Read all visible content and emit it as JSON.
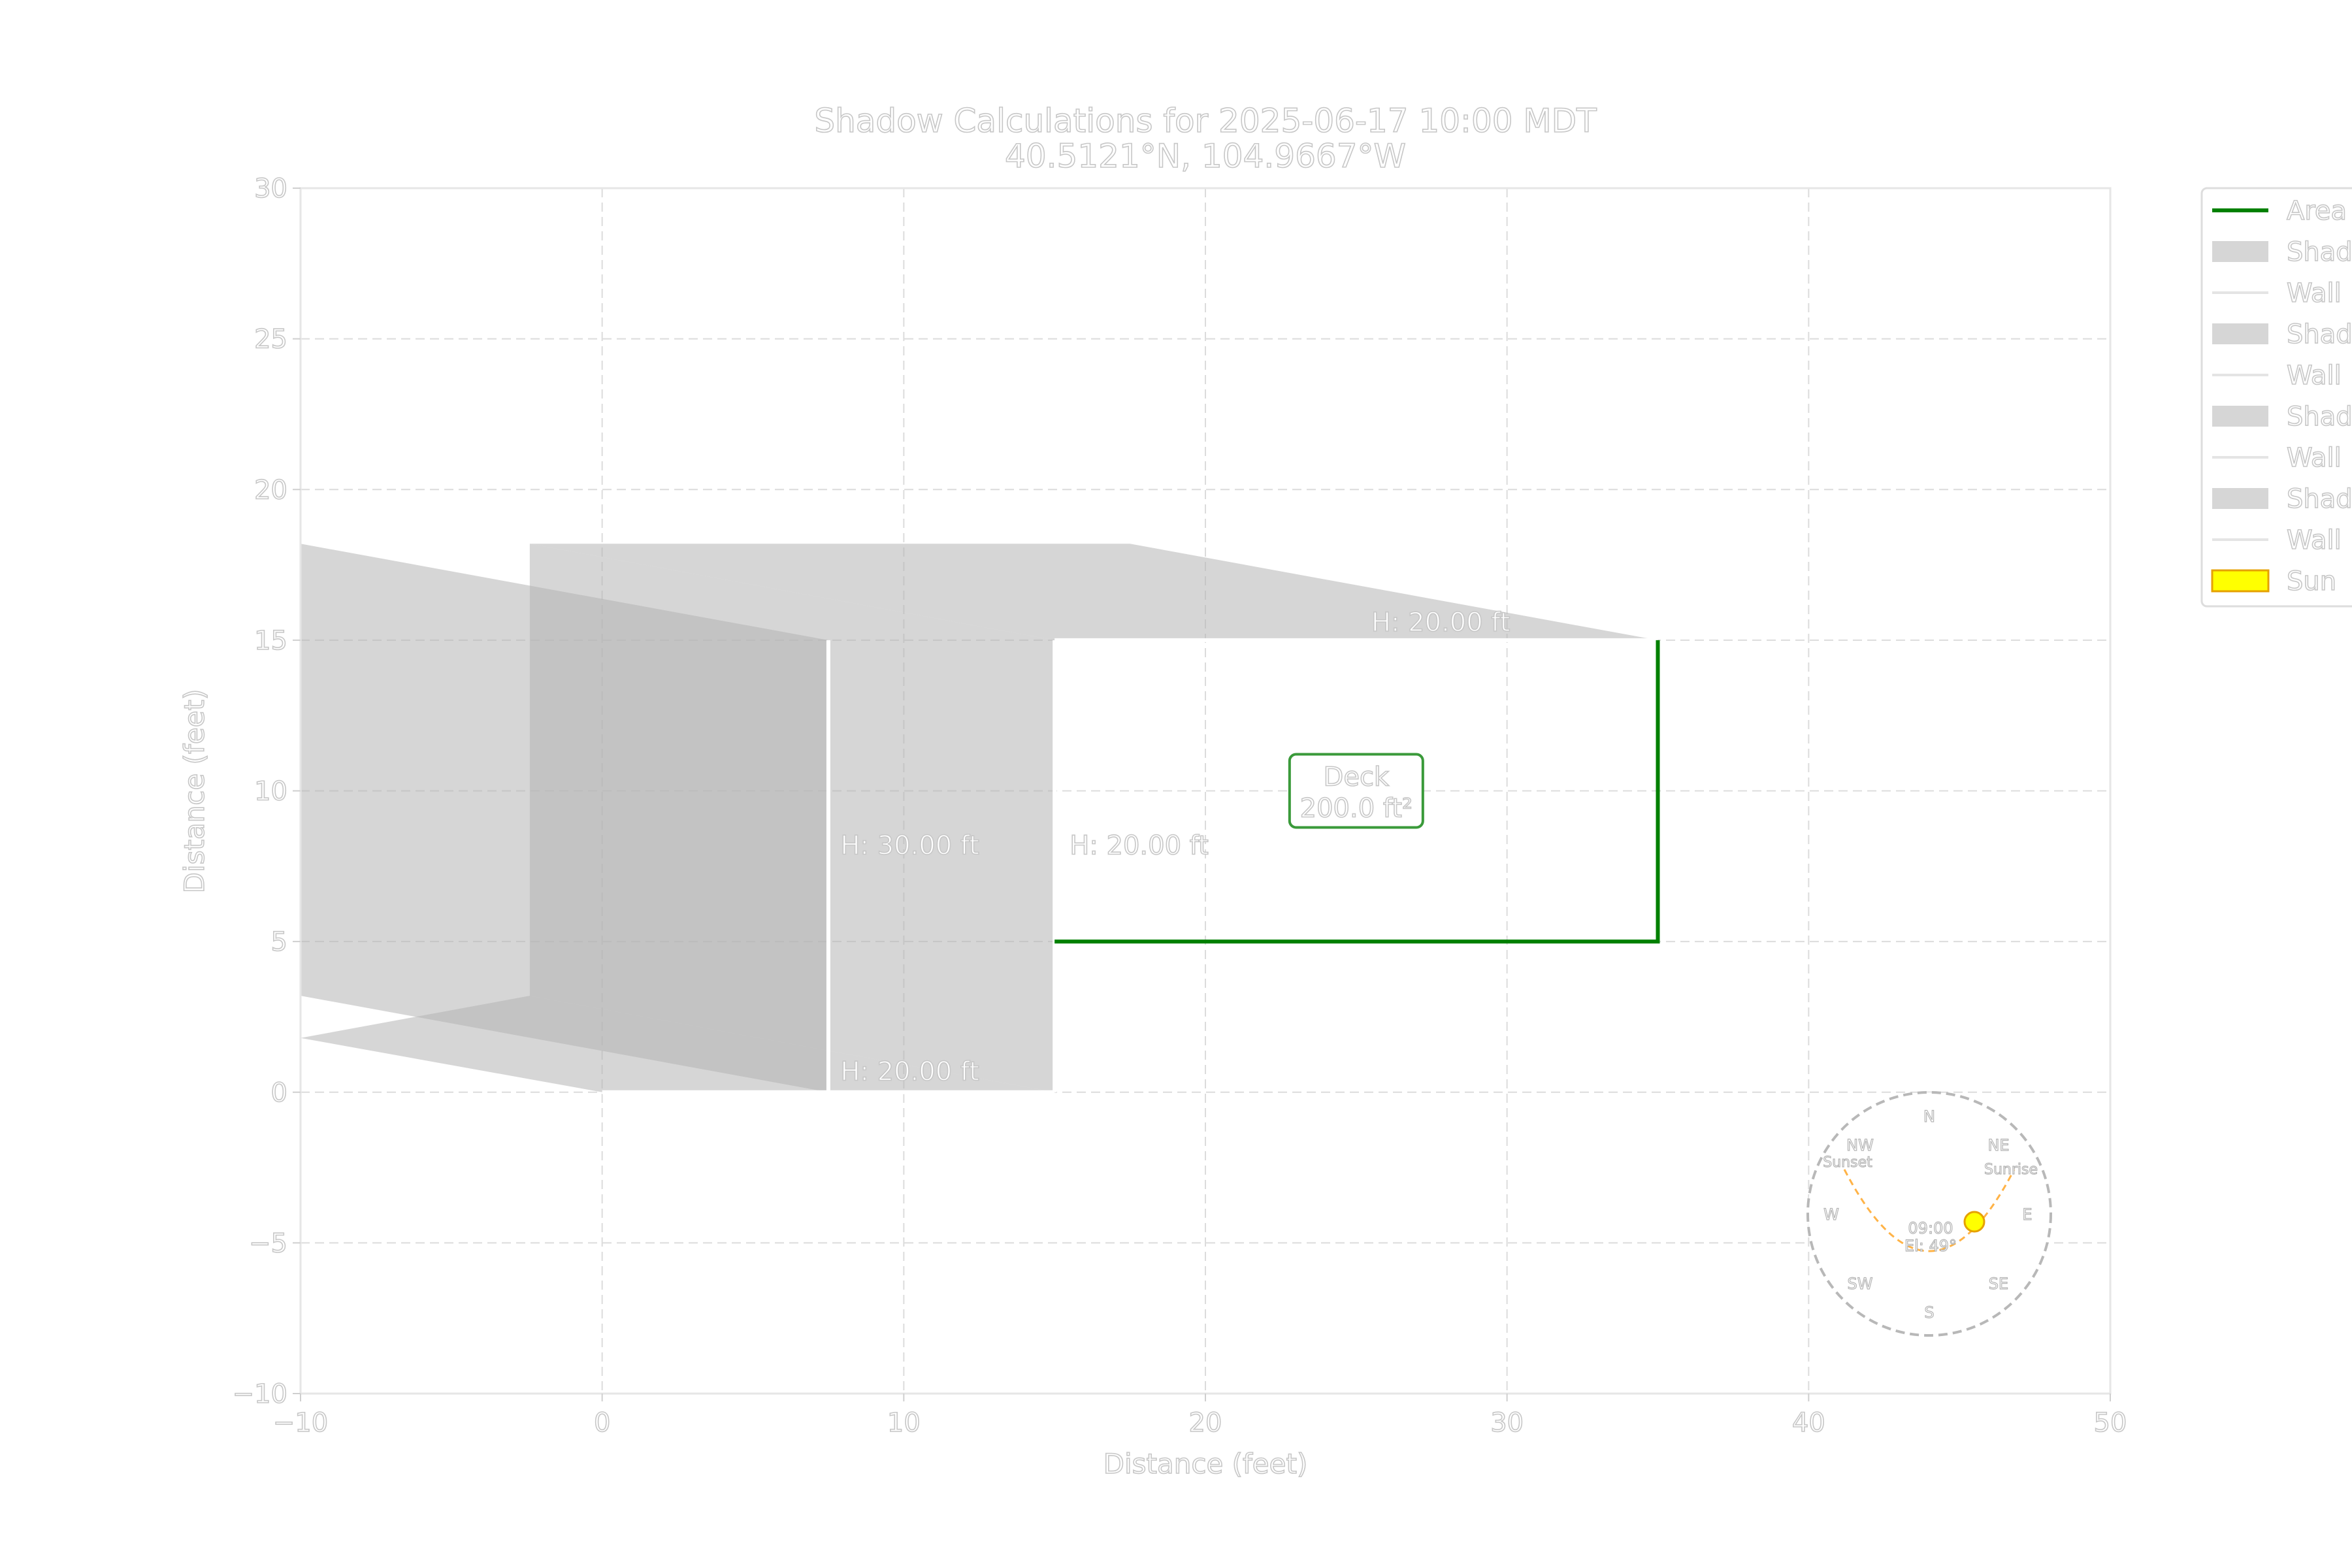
{
  "chart_data": {
    "type": "area",
    "title": "Shadow Calculations for 2025-06-17 10:00 MDT",
    "subtitle": "40.5121°N, 104.9667°W",
    "xlabel": "Distance (feet)",
    "ylabel": "Distance (feet)",
    "xlim": [
      -10,
      50
    ],
    "ylim": [
      -10,
      30
    ],
    "xticks": [
      -10,
      0,
      10,
      20,
      30,
      40,
      50
    ],
    "yticks": [
      -10,
      -5,
      0,
      5,
      10,
      15,
      20,
      25,
      30
    ],
    "tick_labels_x": [
      "−10",
      "0",
      "10",
      "20",
      "30",
      "40",
      "50"
    ],
    "tick_labels_y": [
      "−10",
      "−5",
      "0",
      "5",
      "10",
      "15",
      "20",
      "25",
      "30"
    ],
    "grid": true,
    "legend_position": "upper-right-outside",
    "legend": [
      "Area",
      "Shad",
      "Wall",
      "Shad",
      "Wall",
      "Shad",
      "Wall",
      "Shad",
      "Wall",
      "Sun"
    ],
    "area": {
      "name": "Deck",
      "area_label": "200.0 ft²",
      "polygon": [
        [
          15,
          5
        ],
        [
          35,
          5
        ],
        [
          35,
          15
        ],
        [
          15,
          15
        ]
      ],
      "color": "#008000"
    },
    "walls": [
      {
        "label": "H: 20.00 ft",
        "from": [
          15,
          15
        ],
        "to": [
          35,
          15
        ]
      },
      {
        "label": "H: 20.00 ft",
        "from": [
          15,
          0
        ],
        "to": [
          15,
          15
        ]
      },
      {
        "label": "H: 30.00 ft",
        "from": [
          7.5,
          0
        ],
        "to": [
          7.5,
          15
        ]
      },
      {
        "label": "H: 20.00 ft",
        "from": [
          0,
          0
        ],
        "to": [
          15,
          0
        ]
      }
    ],
    "shadows": [
      {
        "polygon": [
          [
            15,
            15
          ],
          [
            35,
            15
          ],
          [
            17.5,
            18.2
          ],
          [
            -2.4,
            18.2
          ]
        ]
      },
      {
        "polygon": [
          [
            15,
            0
          ],
          [
            15,
            15
          ],
          [
            -2.4,
            18.2
          ],
          [
            -2.4,
            3.2
          ]
        ]
      },
      {
        "polygon": [
          [
            7.5,
            0
          ],
          [
            7.5,
            15
          ],
          [
            -10,
            18.2
          ],
          [
            -10,
            3.2
          ]
        ]
      },
      {
        "polygon": [
          [
            0,
            0
          ],
          [
            15,
            0
          ],
          [
            -2.4,
            3.2
          ],
          [
            -10,
            1.8
          ]
        ]
      }
    ],
    "shadow_color": "#d6d6d6",
    "compass": {
      "labels": [
        "N",
        "NE",
        "E",
        "SE",
        "S",
        "SW",
        "W",
        "NW"
      ],
      "sunrise_label": "Sunrise",
      "sunset_label": "Sunset",
      "time": "09:00",
      "elevation": "El: 49°",
      "sun_fill": "#ffff00",
      "sun_edge": "#e6a100",
      "path_color": "#ffb347"
    }
  }
}
